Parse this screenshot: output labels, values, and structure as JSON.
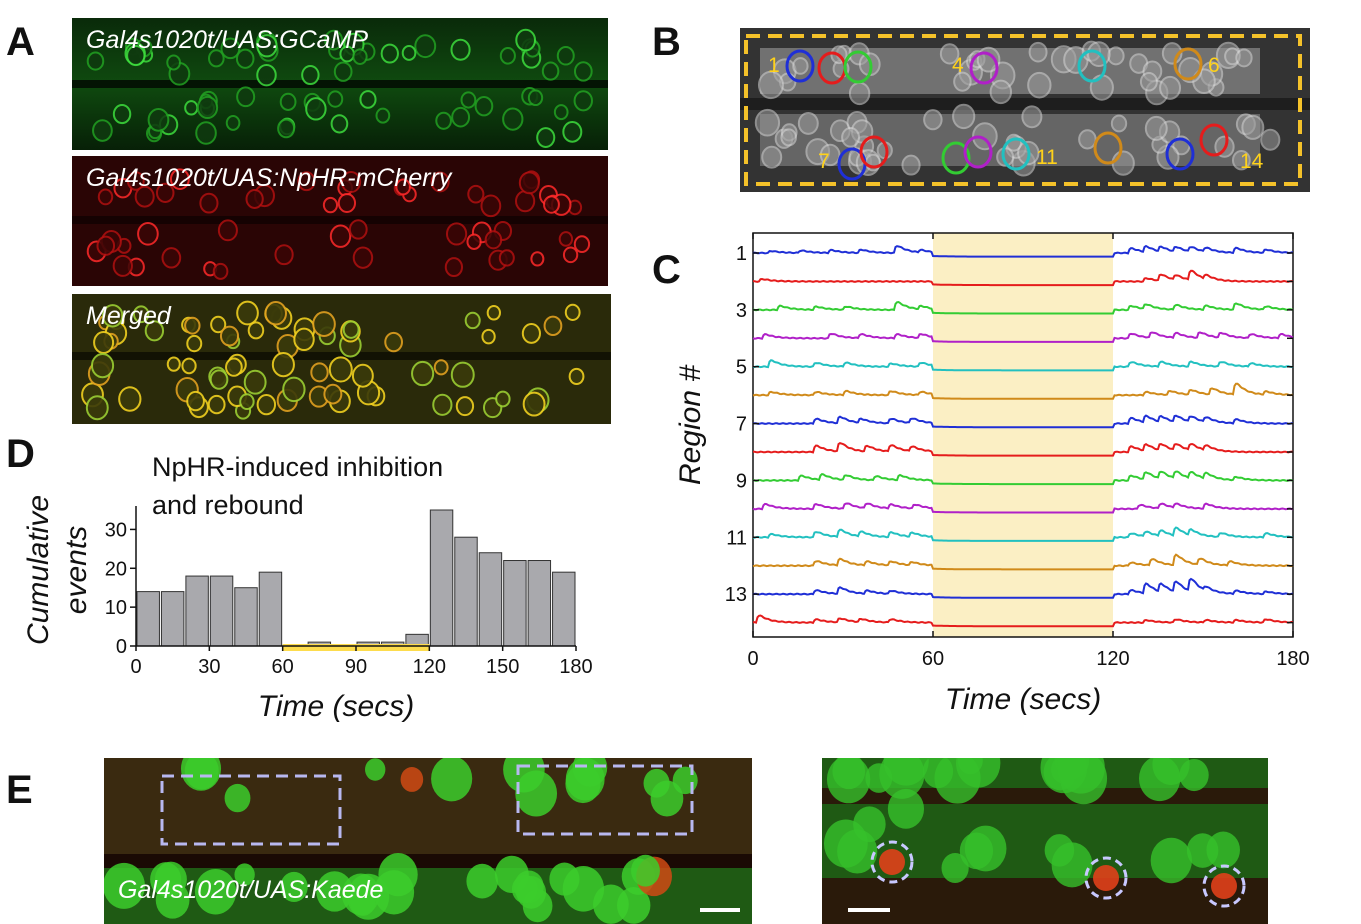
{
  "panels": {
    "a_label": "A",
    "b_label": "B",
    "c_label": "C",
    "d_label": "D",
    "e_label": "E"
  },
  "panel_a": {
    "img1_caption": "Gal4s1020t/UAS:GCaMP",
    "img2_caption": "Gal4s1020t/UAS:NpHR-mCherry",
    "img3_caption": "Merged"
  },
  "panel_b": {
    "roi_labels": [
      "1",
      "4",
      "6",
      "7",
      "11",
      "14"
    ]
  },
  "panel_e": {
    "caption": "Gal4s1020t/UAS:Kaede"
  },
  "colors": {
    "blue": "#1f2fd6",
    "red": "#e51c1c",
    "green": "#33cc33",
    "magenta": "#b020c8",
    "cyan": "#22c0c0",
    "orange": "#d08a1a",
    "highlight": "#fbefc4",
    "bar": "#a9a9ad",
    "light_bar": "#fddc4d"
  },
  "chart_data": [
    {
      "id": "D",
      "type": "bar",
      "title": "NpHR-induced inhibition\nand rebound",
      "title_lines": [
        "NpHR-induced inhibition",
        "and rebound"
      ],
      "xlabel": "Time (secs)",
      "ylabel_lines": [
        "Cumulative",
        "events"
      ],
      "x": [
        0,
        10,
        20,
        30,
        40,
        50,
        60,
        70,
        80,
        90,
        100,
        110,
        120,
        130,
        140,
        150,
        160,
        170
      ],
      "values": [
        14,
        14,
        18,
        18,
        15,
        19,
        0,
        1,
        0,
        1,
        1,
        3,
        35,
        28,
        24,
        22,
        22,
        19
      ],
      "xlim": [
        0,
        180
      ],
      "ylim": [
        0,
        35
      ],
      "xticks": [
        0,
        30,
        60,
        90,
        120,
        150,
        180
      ],
      "yticks": [
        0,
        10,
        20,
        30
      ],
      "light_period": [
        60,
        120
      ]
    },
    {
      "id": "C",
      "type": "line",
      "xlabel": "Time (secs)",
      "ylabel": "Region #",
      "xlim": [
        0,
        180
      ],
      "xticks": [
        0,
        60,
        120,
        180
      ],
      "ytick_labels": [
        "1",
        "3",
        "5",
        "7",
        "9",
        "11",
        "13"
      ],
      "light_period": [
        60,
        120
      ],
      "series": [
        {
          "region": 1,
          "color": "blue",
          "peaks": [
            [
              5,
              0.25
            ],
            [
              15,
              0.3
            ],
            [
              25,
              0.35
            ],
            [
              35,
              0.4
            ],
            [
              47,
              0.9
            ],
            [
              55,
              0.3
            ],
            [
              125,
              0.6
            ],
            [
              130,
              0.7
            ],
            [
              135,
              0.6
            ],
            [
              140,
              0.6
            ],
            [
              145,
              0.6
            ],
            [
              150,
              0.5
            ],
            [
              160,
              0.6
            ],
            [
              170,
              0.4
            ]
          ]
        },
        {
          "region": 2,
          "color": "red",
          "peaks": [
            [
              2,
              0.3
            ],
            [
              130,
              0.4
            ],
            [
              135,
              0.8
            ],
            [
              140,
              0.6
            ],
            [
              145,
              1.2
            ],
            [
              150,
              0.5
            ]
          ]
        },
        {
          "region": 3,
          "color": "green",
          "peaks": [
            [
              8,
              0.5
            ],
            [
              20,
              0.4
            ],
            [
              30,
              0.4
            ],
            [
              47,
              1.0
            ],
            [
              55,
              0.4
            ],
            [
              125,
              0.5
            ],
            [
              130,
              0.6
            ],
            [
              140,
              0.6
            ],
            [
              150,
              0.5
            ],
            [
              160,
              0.8
            ],
            [
              170,
              0.4
            ]
          ]
        },
        {
          "region": 4,
          "color": "magenta",
          "peaks": [
            [
              3,
              0.5
            ],
            [
              25,
              0.6
            ],
            [
              35,
              0.5
            ],
            [
              47,
              0.5
            ],
            [
              55,
              0.5
            ],
            [
              125,
              0.6
            ],
            [
              132,
              0.7
            ],
            [
              140,
              0.6
            ],
            [
              148,
              0.7
            ],
            [
              155,
              0.6
            ],
            [
              165,
              0.5
            ],
            [
              175,
              0.5
            ]
          ]
        },
        {
          "region": 5,
          "color": "cyan",
          "peaks": [
            [
              5,
              0.8
            ],
            [
              20,
              0.5
            ],
            [
              30,
              0.5
            ],
            [
              45,
              0.4
            ],
            [
              55,
              0.5
            ],
            [
              125,
              0.6
            ],
            [
              135,
              0.6
            ],
            [
              145,
              0.6
            ],
            [
              155,
              0.6
            ],
            [
              165,
              0.4
            ]
          ]
        },
        {
          "region": 6,
          "color": "orange",
          "peaks": [
            [
              5,
              0.4
            ],
            [
              20,
              0.4
            ],
            [
              30,
              0.5
            ],
            [
              45,
              0.5
            ],
            [
              55,
              0.4
            ],
            [
              130,
              0.4
            ],
            [
              138,
              0.5
            ],
            [
              145,
              0.6
            ],
            [
              152,
              0.8
            ],
            [
              160,
              1.4
            ],
            [
              170,
              0.4
            ]
          ]
        },
        {
          "region": 7,
          "color": "blue",
          "peaks": [
            [
              20,
              0.6
            ],
            [
              28,
              0.8
            ],
            [
              35,
              0.5
            ],
            [
              45,
              0.6
            ],
            [
              52,
              0.6
            ],
            [
              125,
              0.7
            ],
            [
              130,
              0.8
            ],
            [
              135,
              0.7
            ],
            [
              140,
              0.8
            ],
            [
              145,
              0.7
            ],
            [
              150,
              0.6
            ],
            [
              160,
              0.5
            ]
          ]
        },
        {
          "region": 8,
          "color": "red",
          "peaks": [
            [
              20,
              0.8
            ],
            [
              28,
              1.1
            ],
            [
              37,
              0.7
            ],
            [
              45,
              0.8
            ],
            [
              52,
              0.6
            ],
            [
              125,
              0.7
            ],
            [
              130,
              0.8
            ],
            [
              135,
              0.8
            ],
            [
              140,
              0.8
            ],
            [
              145,
              0.8
            ],
            [
              150,
              0.6
            ]
          ]
        },
        {
          "region": 9,
          "color": "green",
          "peaks": [
            [
              15,
              0.6
            ],
            [
              22,
              0.7
            ],
            [
              30,
              0.6
            ],
            [
              40,
              0.5
            ],
            [
              48,
              0.6
            ],
            [
              125,
              0.6
            ],
            [
              130,
              0.9
            ],
            [
              135,
              0.9
            ],
            [
              140,
              0.9
            ],
            [
              145,
              0.8
            ],
            [
              150,
              0.7
            ],
            [
              160,
              0.4
            ]
          ]
        },
        {
          "region": 10,
          "color": "magenta",
          "peaks": [
            [
              3,
              0.6
            ],
            [
              20,
              0.6
            ],
            [
              30,
              0.7
            ],
            [
              37,
              0.6
            ],
            [
              45,
              0.5
            ],
            [
              53,
              0.5
            ],
            [
              128,
              0.5
            ],
            [
              135,
              0.6
            ],
            [
              140,
              0.5
            ],
            [
              150,
              0.6
            ]
          ]
        },
        {
          "region": 11,
          "color": "cyan",
          "peaks": [
            [
              5,
              0.4
            ],
            [
              20,
              0.7
            ],
            [
              28,
              0.9
            ],
            [
              35,
              0.6
            ],
            [
              45,
              0.6
            ],
            [
              52,
              0.5
            ],
            [
              125,
              0.5
            ],
            [
              130,
              0.6
            ],
            [
              135,
              0.7
            ],
            [
              140,
              1.0
            ],
            [
              145,
              0.7
            ],
            [
              155,
              0.5
            ],
            [
              170,
              0.5
            ]
          ]
        },
        {
          "region": 12,
          "color": "orange",
          "peaks": [
            [
              20,
              0.6
            ],
            [
              28,
              0.8
            ],
            [
              37,
              0.5
            ],
            [
              45,
              0.5
            ],
            [
              52,
              0.4
            ],
            [
              125,
              0.4
            ],
            [
              132,
              0.8
            ],
            [
              140,
              1.3
            ],
            [
              148,
              0.8
            ],
            [
              158,
              0.5
            ]
          ]
        },
        {
          "region": 13,
          "color": "blue",
          "peaks": [
            [
              20,
              0.5
            ],
            [
              28,
              0.8
            ],
            [
              37,
              0.4
            ],
            [
              45,
              0.4
            ],
            [
              125,
              0.5
            ],
            [
              130,
              1.2
            ],
            [
              135,
              1.0
            ],
            [
              140,
              1.3
            ],
            [
              145,
              1.6
            ],
            [
              150,
              0.5
            ],
            [
              160,
              0.4
            ],
            [
              170,
              0.3
            ]
          ]
        },
        {
          "region": 14,
          "color": "red",
          "peaks": [
            [
              1,
              0.9
            ],
            [
              20,
              0.4
            ],
            [
              28,
              0.5
            ],
            [
              35,
              0.4
            ],
            [
              45,
              0.4
            ],
            [
              130,
              0.3
            ],
            [
              140,
              0.4
            ],
            [
              150,
              0.3
            ],
            [
              160,
              0.3
            ],
            [
              170,
              0.4
            ]
          ]
        }
      ]
    }
  ]
}
